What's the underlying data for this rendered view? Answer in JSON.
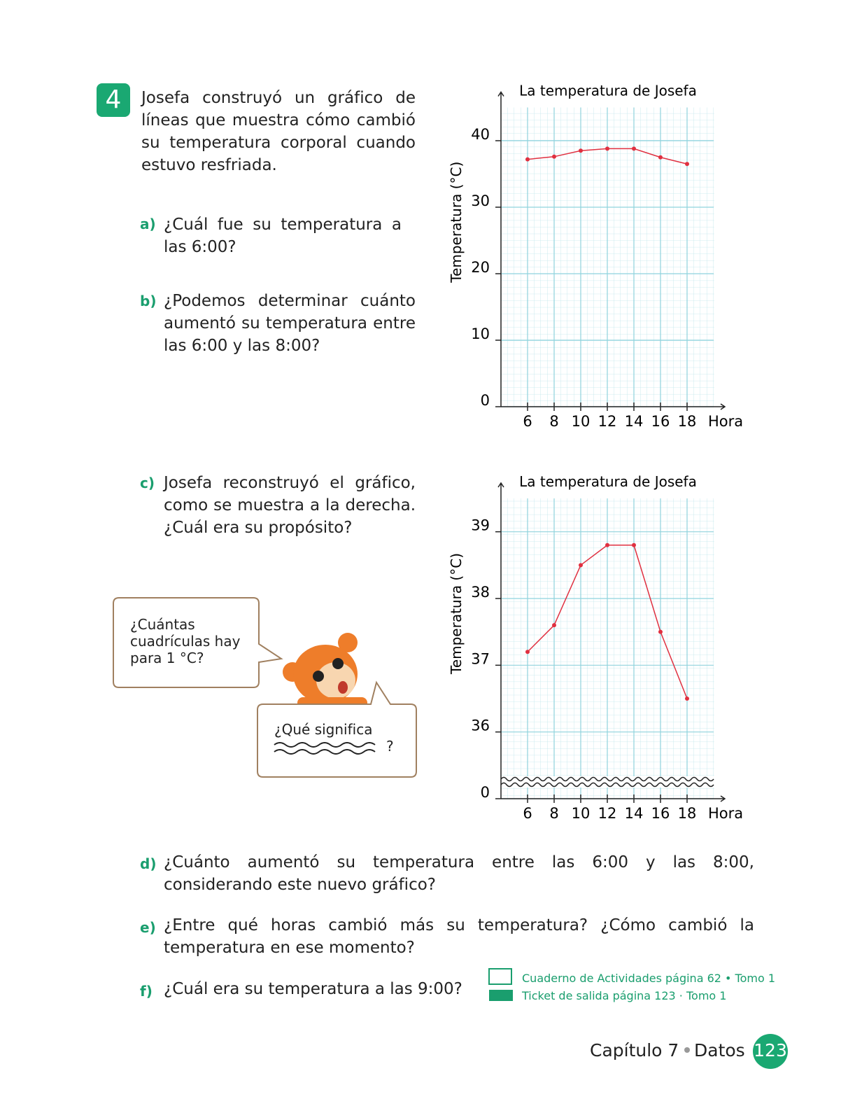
{
  "problem": {
    "number": "4",
    "text": "Josefa construyó un gráfico de líneas que muestra cómo cambió su temperatura corporal cuando estuvo resfriada."
  },
  "questions": [
    {
      "label": "a)",
      "text": "¿Cuál fue su temperatura a las 6:00?"
    },
    {
      "label": "b)",
      "text": "¿Podemos determinar cuánto aumentó su temperatura entre las 6:00 y las 8:00?"
    },
    {
      "label": "c)",
      "text": "Josefa reconstruyó el gráfico, como se muestra a la derecha. ¿Cuál era su propósito?"
    },
    {
      "label": "d)",
      "text": "¿Cuánto aumentó su temperatura entre las 6:00 y las 8:00, considerando este nuevo gráfico?"
    },
    {
      "label": "e)",
      "text": "¿Entre qué horas cambió más su temperatura? ¿Cómo cambió la temperatura en ese momento?"
    },
    {
      "label": "f)",
      "text": "¿Cuál era su temperatura a las 9:00?"
    }
  ],
  "bubbles": [
    "¿Cuántas cuadrículas hay para 1 °C?",
    "¿Qué significa",
    "?"
  ],
  "references": [
    "Cuaderno de Actividades página 62 • Tomo 1",
    "Ticket de salida página 123 · Tomo 1"
  ],
  "footer": {
    "chapter": "Capítulo 7",
    "section": "Datos",
    "page": "123"
  },
  "chart_data": [
    {
      "type": "line",
      "title": "La temperatura de Josefa",
      "xlabel": "Hora",
      "ylabel": "Temperatura (°C)",
      "x": [
        6,
        8,
        10,
        12,
        14,
        16,
        18
      ],
      "series": [
        {
          "name": "Temperatura",
          "color": "#e03040",
          "values": [
            37.2,
            37.6,
            38.5,
            38.8,
            38.8,
            37.5,
            36.5
          ]
        }
      ],
      "xlim": [
        4,
        20
      ],
      "xticks": [
        6,
        8,
        10,
        12,
        14,
        16,
        18
      ],
      "ylim": [
        0,
        45
      ],
      "yticks": [
        0,
        10,
        20,
        30,
        40
      ],
      "grid": true
    },
    {
      "type": "line",
      "title": "La temperatura de Josefa",
      "xlabel": "Hora",
      "ylabel": "Temperatura (°C)",
      "x": [
        6,
        8,
        10,
        12,
        14,
        16,
        18
      ],
      "series": [
        {
          "name": "Temperatura",
          "color": "#e03040",
          "values": [
            37.2,
            37.6,
            38.5,
            38.8,
            38.8,
            37.5,
            36.5
          ]
        }
      ],
      "xlim": [
        4,
        20
      ],
      "xticks": [
        6,
        8,
        10,
        12,
        14,
        16,
        18
      ],
      "ylim": [
        0,
        39.5
      ],
      "y_break": [
        0,
        35
      ],
      "yticks": [
        0,
        36,
        37,
        38,
        39
      ],
      "grid": true
    }
  ]
}
